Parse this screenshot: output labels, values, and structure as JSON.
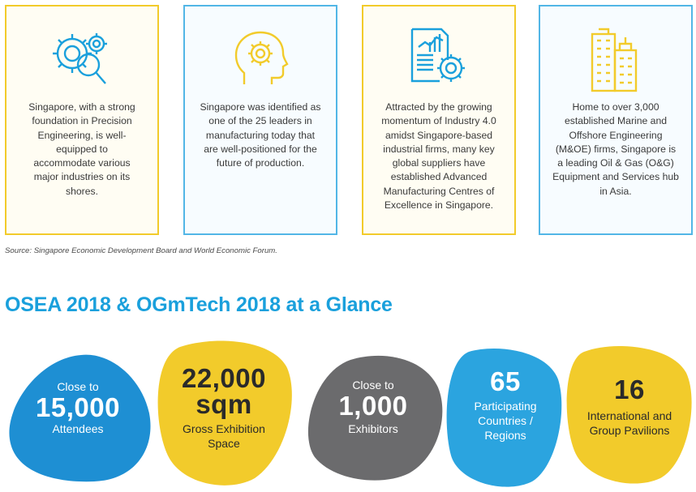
{
  "cards": [
    {
      "icon": "gears-magnifier-icon",
      "text": "Singapore, with a strong foundation in Precision Engineering, is well-equipped to accommodate various major industries on its shores."
    },
    {
      "icon": "head-gear-icon",
      "text": "Singapore was identified as one of the 25 leaders in manufacturing today that are well-positioned for the future of production."
    },
    {
      "icon": "chart-gear-icon",
      "text": "Attracted by the growing momentum of Industry 4.0 amidst Singapore-based industrial firms, many key global suppliers have established Advanced Manufacturing Centres of Excellence in Singapore."
    },
    {
      "icon": "buildings-icon",
      "text": "Home to over 3,000 established Marine and Offshore Engineering (M&OE) firms, Singapore is a leading Oil & Gas (O&G) Equipment and Services hub in Asia."
    }
  ],
  "source": "Source: Singapore Economic Development Board and World Economic Forum.",
  "heading": "OSEA 2018 & OGmTech 2018 at a Glance",
  "stats": [
    {
      "pre": "Close to",
      "value": "15,000",
      "label": "Attendees",
      "color": "#1e8fd3"
    },
    {
      "pre": "",
      "value": "22,000",
      "value2": "sqm",
      "label": "Gross Exhibition",
      "label2": "Space",
      "color": "#f2cb2b"
    },
    {
      "pre": "Close to",
      "value": "1,000",
      "label": "Exhibitors",
      "color": "#6b6b6d"
    },
    {
      "pre": "",
      "value": "65",
      "label": "Participating",
      "label2": "Countries /",
      "label3": "Regions",
      "color": "#2ba4df"
    },
    {
      "pre": "",
      "value": "16",
      "label": "International and",
      "label2": "Group Pavilions",
      "color": "#f2cb2b"
    }
  ],
  "colors": {
    "yellow": "#f2cb2b",
    "blue_border": "#52b6e6",
    "heading": "#1aa0dc",
    "icon_blue": "#1aa0dc",
    "icon_yellow": "#f2cb2b"
  }
}
